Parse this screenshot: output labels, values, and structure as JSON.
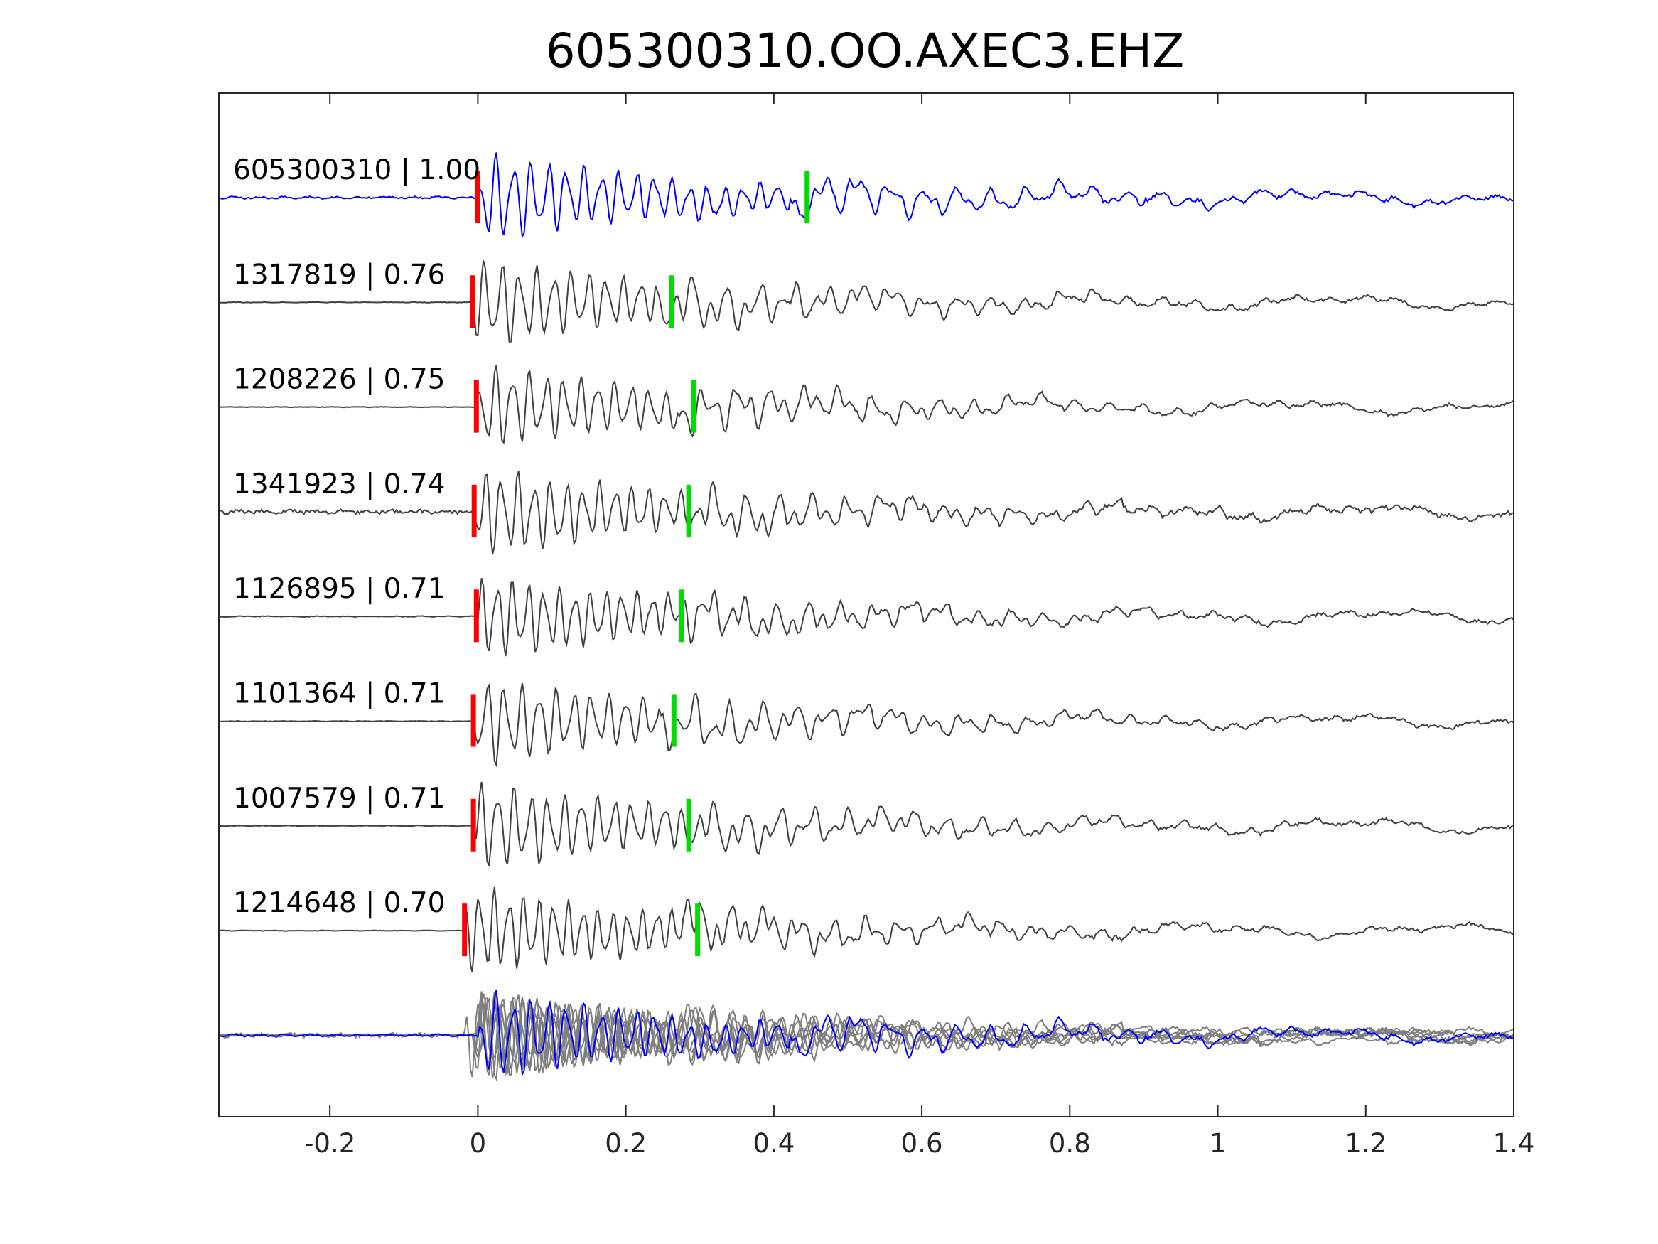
{
  "chart_data": {
    "type": "line",
    "title": "605300310.OO.AXEC3.EHZ",
    "xlabel": "",
    "ylabel": "",
    "xlim": [
      -0.35,
      1.4
    ],
    "xticks": [
      {
        "value": -0.2,
        "label": "-0.2"
      },
      {
        "value": 0,
        "label": "0"
      },
      {
        "value": 0.2,
        "label": "0.2"
      },
      {
        "value": 0.4,
        "label": "0.4"
      },
      {
        "value": 0.6,
        "label": "0.6"
      },
      {
        "value": 0.8,
        "label": "0.8"
      },
      {
        "value": 1,
        "label": "1"
      },
      {
        "value": 1.2,
        "label": "1.2"
      },
      {
        "value": 1.4,
        "label": "1.4"
      }
    ],
    "grid": false,
    "colors": {
      "reference_trace": "#0000ff",
      "other_traces": "#404040",
      "overlay_traces": "#7f7f7f",
      "p_pick": "#ff0000",
      "s_pick": "#00dd00",
      "axes": "#262626"
    },
    "traces": [
      {
        "name": "605300310 | 1.00",
        "event_id": "605300310",
        "correlation": 1.0,
        "p_pick": 0.0,
        "s_pick": 0.445,
        "reference": true,
        "noise": 0.9,
        "amplitude": 1.0,
        "seed": 11
      },
      {
        "name": "1317819 | 0.76",
        "event_id": "1317819",
        "correlation": 0.76,
        "p_pick": -0.007,
        "s_pick": 0.262,
        "reference": false,
        "noise": 0.25,
        "amplitude": 1.0,
        "seed": 23
      },
      {
        "name": "1208226 | 0.75",
        "event_id": "1208226",
        "correlation": 0.75,
        "p_pick": -0.002,
        "s_pick": 0.292,
        "reference": false,
        "noise": 0.25,
        "amplitude": 0.95,
        "seed": 37
      },
      {
        "name": "1341923 | 0.74",
        "event_id": "1341923",
        "correlation": 0.74,
        "p_pick": -0.005,
        "s_pick": 0.285,
        "reference": false,
        "noise": 1.6,
        "amplitude": 1.0,
        "seed": 41
      },
      {
        "name": "1126895 | 0.71",
        "event_id": "1126895",
        "correlation": 0.71,
        "p_pick": -0.002,
        "s_pick": 0.275,
        "reference": false,
        "noise": 0.35,
        "amplitude": 0.95,
        "seed": 53
      },
      {
        "name": "1101364 | 0.71",
        "event_id": "1101364",
        "correlation": 0.71,
        "p_pick": -0.006,
        "s_pick": 0.265,
        "reference": false,
        "noise": 0.25,
        "amplitude": 1.0,
        "seed": 67
      },
      {
        "name": "1007579 | 0.71",
        "event_id": "1007579",
        "correlation": 0.71,
        "p_pick": -0.006,
        "s_pick": 0.285,
        "reference": false,
        "noise": 0.25,
        "amplitude": 1.0,
        "seed": 79
      },
      {
        "name": "1214648 | 0.70",
        "event_id": "1214648",
        "correlation": 0.7,
        "p_pick": -0.018,
        "s_pick": 0.297,
        "reference": false,
        "noise": 0.25,
        "amplitude": 1.0,
        "seed": 83
      }
    ],
    "overlay": {
      "description_visible": false
    }
  }
}
